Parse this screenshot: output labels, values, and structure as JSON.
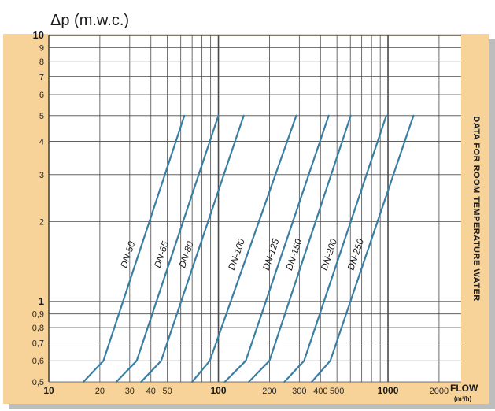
{
  "chart_data": {
    "type": "line",
    "ylabel": "Δp (m.w.c.)",
    "xlabel": "FLOW",
    "xunit": "(m³/h)",
    "side_note": "DATA FOR ROOM TEMPERATURE WATER",
    "xscale": "log",
    "yscale": "log",
    "xlim": [
      10,
      2700
    ],
    "ylim": [
      0.5,
      10
    ],
    "grid": true,
    "x_ticks": [
      {
        "value": 10,
        "label": "10",
        "major": true
      },
      {
        "value": 20,
        "label": "20",
        "major": false
      },
      {
        "value": 30,
        "label": "30",
        "major": false
      },
      {
        "value": 40,
        "label": "40",
        "major": false
      },
      {
        "value": 50,
        "label": "50",
        "major": false
      },
      {
        "value": 100,
        "label": "100",
        "major": true
      },
      {
        "value": 200,
        "label": "200",
        "major": false
      },
      {
        "value": 300,
        "label": "300",
        "major": false
      },
      {
        "value": 400,
        "label": "400",
        "major": false
      },
      {
        "value": 500,
        "label": "500",
        "major": false
      },
      {
        "value": 1000,
        "label": "1000",
        "major": true
      },
      {
        "value": 2000,
        "label": "2000",
        "major": false
      }
    ],
    "y_ticks": [
      {
        "value": 0.5,
        "label": "0,5",
        "major": false
      },
      {
        "value": 0.6,
        "label": "0,6",
        "major": false
      },
      {
        "value": 0.7,
        "label": "0,7",
        "major": false
      },
      {
        "value": 0.8,
        "label": "0,8",
        "major": false
      },
      {
        "value": 0.9,
        "label": "0,9",
        "major": false
      },
      {
        "value": 1,
        "label": "1",
        "major": true
      },
      {
        "value": 2,
        "label": "2",
        "major": false
      },
      {
        "value": 3,
        "label": "3",
        "major": false
      },
      {
        "value": 4,
        "label": "4",
        "major": false
      },
      {
        "value": 5,
        "label": "5",
        "major": false
      },
      {
        "value": 6,
        "label": "6",
        "major": false
      },
      {
        "value": 7,
        "label": "7",
        "major": false
      },
      {
        "value": 8,
        "label": "8",
        "major": false
      },
      {
        "value": 9,
        "label": "9",
        "major": false
      },
      {
        "value": 10,
        "label": "10",
        "major": true
      }
    ],
    "series": [
      {
        "name": "DN-50",
        "points": [
          [
            16,
            0.5
          ],
          [
            21,
            0.6
          ],
          [
            63,
            5
          ]
        ]
      },
      {
        "name": "DN-65",
        "points": [
          [
            25,
            0.5
          ],
          [
            33,
            0.6
          ],
          [
            100,
            5
          ]
        ]
      },
      {
        "name": "DN-80",
        "points": [
          [
            35,
            0.5
          ],
          [
            46,
            0.6
          ],
          [
            141,
            5
          ]
        ]
      },
      {
        "name": "DN-100",
        "points": [
          [
            70,
            0.5
          ],
          [
            89,
            0.6
          ],
          [
            288,
            5
          ]
        ]
      },
      {
        "name": "DN-125",
        "points": [
          [
            109,
            0.5
          ],
          [
            145,
            0.6
          ],
          [
            447,
            5
          ]
        ]
      },
      {
        "name": "DN-150",
        "points": [
          [
            151,
            0.5
          ],
          [
            200,
            0.6
          ],
          [
            603,
            5
          ]
        ]
      },
      {
        "name": "DN-200",
        "points": [
          [
            245,
            0.5
          ],
          [
            320,
            0.6
          ],
          [
            977,
            5
          ]
        ]
      },
      {
        "name": "DN-250",
        "points": [
          [
            355,
            0.5
          ],
          [
            457,
            0.6
          ],
          [
            1413,
            5
          ]
        ]
      }
    ],
    "colors": {
      "frame": "#f7d39a",
      "plot_background": "#ffffff",
      "grid": "#4a4a4a",
      "series_line": "#3a7fa3",
      "shadow": "#bdbdbd"
    }
  }
}
